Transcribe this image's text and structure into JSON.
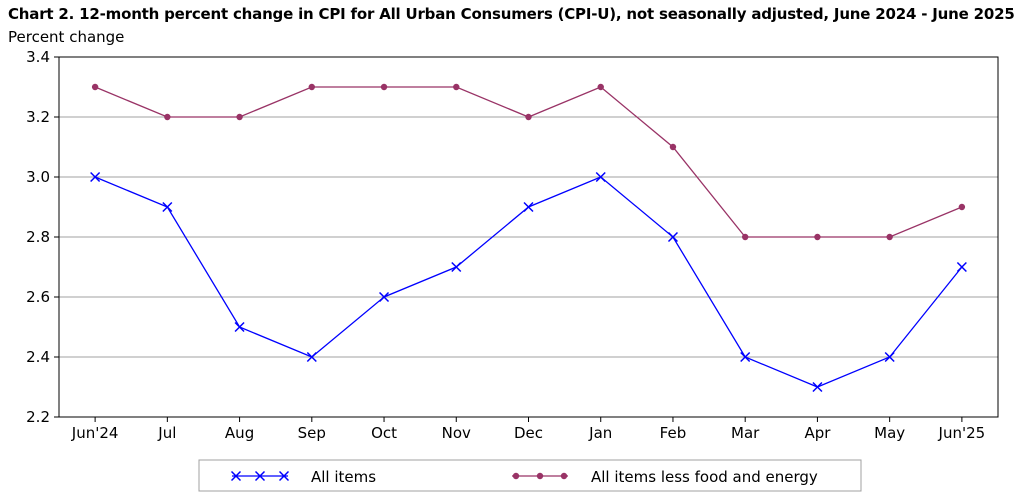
{
  "chart_data": {
    "type": "line",
    "title": "Chart 2. 12-month percent change in CPI for All Urban Consumers (CPI-U), not seasonally adjusted, June 2024 - June 2025",
    "ylabel": "Percent change",
    "xlabel": "",
    "categories": [
      "Jun'24",
      "Jul",
      "Aug",
      "Sep",
      "Oct",
      "Nov",
      "Dec",
      "Jan",
      "Feb",
      "Mar",
      "Apr",
      "May",
      "Jun'25"
    ],
    "ylim": [
      2.2,
      3.4
    ],
    "yticks": [
      "2.2",
      "2.4",
      "2.6",
      "2.8",
      "3.0",
      "3.2",
      "3.4"
    ],
    "grid": true,
    "legend_position": "bottom",
    "series": [
      {
        "name": "All items",
        "color": "#0000ff",
        "marker": "x",
        "values": [
          3.0,
          2.9,
          2.5,
          2.4,
          2.6,
          2.7,
          2.9,
          3.0,
          2.8,
          2.4,
          2.3,
          2.4,
          2.7
        ]
      },
      {
        "name": "All items less food and energy",
        "color": "#993366",
        "marker": "circle",
        "values": [
          3.3,
          3.2,
          3.2,
          3.3,
          3.3,
          3.3,
          3.2,
          3.3,
          3.1,
          2.8,
          2.8,
          2.8,
          2.9
        ]
      }
    ]
  }
}
